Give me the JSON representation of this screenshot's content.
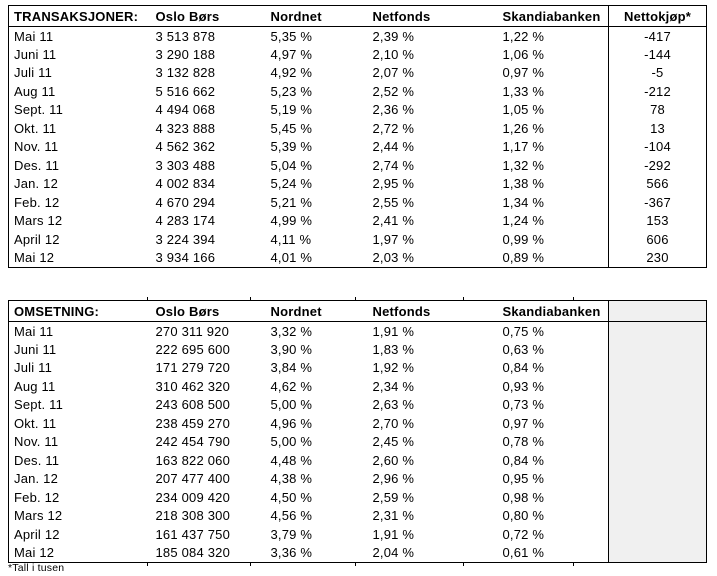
{
  "colors": {
    "background": "#ffffff",
    "border": "#000000",
    "text": "#000000",
    "shaded_column": "#f0f0f0"
  },
  "footnote": "*Tall i tusen",
  "tables": [
    {
      "name": "transaksjoner",
      "headers": [
        "TRANSAKSJONER:",
        "Oslo Børs",
        "Nordnet",
        "Netfonds",
        "Skandiabanken",
        "Nettokjøp*"
      ],
      "rows": [
        [
          "Mai 11",
          "3 513 878",
          "5,35 %",
          "2,39 %",
          "1,22 %",
          "-417"
        ],
        [
          "Juni 11",
          "3 290 188",
          "4,97 %",
          "2,10 %",
          "1,06 %",
          "-144"
        ],
        [
          "Juli 11",
          "3 132 828",
          "4,92 %",
          "2,07 %",
          "0,97 %",
          "-5"
        ],
        [
          "Aug 11",
          "5 516 662",
          "5,23 %",
          "2,52 %",
          "1,33 %",
          "-212"
        ],
        [
          "Sept. 11",
          "4 494 068",
          "5,19 %",
          "2,36 %",
          "1,05 %",
          "78"
        ],
        [
          "Okt. 11",
          "4 323 888",
          "5,45 %",
          "2,72 %",
          "1,26 %",
          "13"
        ],
        [
          "Nov. 11",
          "4 562 362",
          "5,39 %",
          "2,44 %",
          "1,17 %",
          "-104"
        ],
        [
          "Des. 11",
          "3 303 488",
          "5,04 %",
          "2,74 %",
          "1,32 %",
          "-292"
        ],
        [
          "Jan. 12",
          "4 002 834",
          "5,24 %",
          "2,95 %",
          "1,38 %",
          "566"
        ],
        [
          "Feb. 12",
          "4 670 294",
          "5,21 %",
          "2,55 %",
          "1,34 %",
          "-367"
        ],
        [
          "Mars 12",
          "4 283 174",
          "4,99 %",
          "2,41 %",
          "1,24 %",
          "153"
        ],
        [
          "April 12",
          "3 224 394",
          "4,11 %",
          "1,97 %",
          "0,99 %",
          "606"
        ],
        [
          "Mai 12",
          "3 934 166",
          "4,01 %",
          "2,03 %",
          "0,89 %",
          "230"
        ]
      ]
    },
    {
      "name": "omsetning",
      "headers": [
        "OMSETNING:",
        "Oslo Børs",
        "Nordnet",
        "Netfonds",
        "Skandiabanken",
        ""
      ],
      "rows": [
        [
          "Mai 11",
          "270 311 920",
          "3,32 %",
          "1,91 %",
          "0,75 %",
          ""
        ],
        [
          "Juni 11",
          "222 695 600",
          "3,90 %",
          "1,83 %",
          "0,63 %",
          ""
        ],
        [
          "Juli 11",
          "171 279 720",
          "3,84 %",
          "1,92 %",
          "0,84 %",
          ""
        ],
        [
          "Aug 11",
          "310 462 320",
          "4,62 %",
          "2,34 %",
          "0,93 %",
          ""
        ],
        [
          "Sept. 11",
          "243 608 500",
          "5,00 %",
          "2,63 %",
          "0,73 %",
          ""
        ],
        [
          "Okt. 11",
          "238 459 270",
          "4,96 %",
          "2,70 %",
          "0,97 %",
          ""
        ],
        [
          "Nov. 11",
          "242 454 790",
          "5,00 %",
          "2,45 %",
          "0,78 %",
          ""
        ],
        [
          "Des. 11",
          "163 822 060",
          "4,48 %",
          "2,60 %",
          "0,84 %",
          ""
        ],
        [
          "Jan. 12",
          "207 477 400",
          "4,38 %",
          "2,96 %",
          "0,95 %",
          ""
        ],
        [
          "Feb. 12",
          "234 009 420",
          "4,50 %",
          "2,59 %",
          "0,98 %",
          ""
        ],
        [
          "Mars 12",
          "218 308 300",
          "4,56 %",
          "2,31 %",
          "0,80 %",
          ""
        ],
        [
          "April 12",
          "161 437 750",
          "3,79 %",
          "1,91 %",
          "0,72 %",
          ""
        ],
        [
          "Mai 12",
          "185 084 320",
          "3,36 %",
          "2,04 %",
          "0,61 %",
          ""
        ]
      ]
    }
  ]
}
